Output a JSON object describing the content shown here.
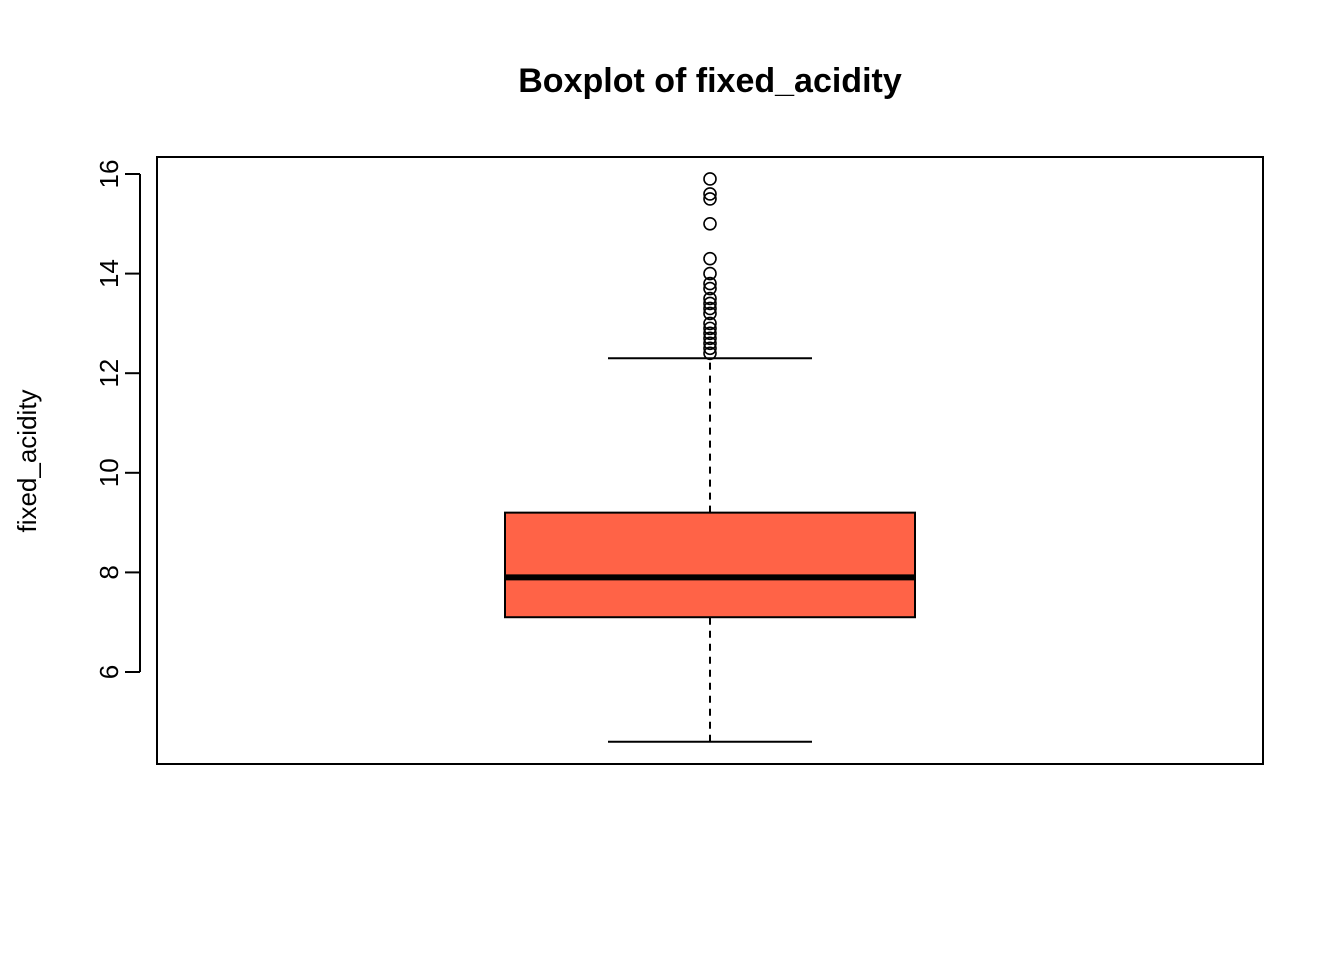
{
  "chart_data": {
    "type": "boxplot",
    "title": "Boxplot of fixed_acidity",
    "xlabel": "",
    "ylabel": "fixed_acidity",
    "ylim": [
      4.6,
      15.9
    ],
    "yticks": [
      6,
      8,
      10,
      12,
      14,
      16
    ],
    "box": {
      "whisker_low": 4.6,
      "q1": 7.1,
      "median": 7.9,
      "q3": 9.2,
      "whisker_high": 12.3
    },
    "outliers": [
      12.4,
      12.5,
      12.6,
      12.7,
      12.8,
      12.9,
      13.0,
      13.2,
      13.3,
      13.4,
      13.5,
      13.7,
      13.8,
      14.0,
      14.3,
      15.0,
      15.5,
      15.6,
      15.9
    ],
    "fill_color": "#FF6347",
    "grid": false,
    "legend": "none"
  }
}
